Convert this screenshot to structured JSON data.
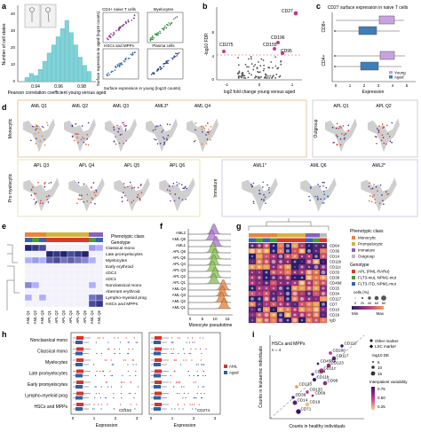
{
  "panels": {
    "a": {
      "letter": "a",
      "ylabel": "Number of cell states",
      "xlabel": "Pearson correlation coefficient\nyoung versus aged",
      "xticks": [
        "0.94",
        "0.96",
        "0.98"
      ],
      "yticks": [
        "0",
        "10",
        "20",
        "30",
        "40"
      ],
      "scatter_titles": [
        "CD4+ naive T cells",
        "Myelocytes",
        "HSCs and MPPs",
        "Plasma cells"
      ],
      "scatter_ylabel": "Surface expression in aged (log10 counts)",
      "scatter_xlabel": "Surface expression in young (log10 counts)",
      "scatter_colors": [
        "#8e2b8e",
        "#2e8b3e",
        "#3a6fb0",
        "#2a3f8f"
      ]
    },
    "b": {
      "letter": "b",
      "ylabel": "-log10 FDR",
      "xlabel": "log2 fold change young versus aged",
      "xticks": [
        "-1",
        "0",
        "1"
      ],
      "yticks": [
        "0",
        "4",
        "8"
      ],
      "labels": [
        "CD27",
        "CD275",
        "CD196",
        "CD155",
        "CD95"
      ]
    },
    "c": {
      "letter": "c",
      "title": "CD27 surface expression in naive T cells",
      "groups": [
        "CD8+",
        "CD4+"
      ],
      "xlabel": "Expression",
      "xticks": [
        "0",
        "1",
        "2",
        "3",
        "4",
        "5"
      ],
      "legend": [
        {
          "name": "Young",
          "color": "#c9a3e0"
        },
        {
          "name": "Aged",
          "color": "#3d7fb8"
        }
      ]
    },
    "d": {
      "letter": "d",
      "row_labels": [
        "Monocytic",
        "Pro myelocytic"
      ],
      "row1_panels": [
        "AML Q1",
        "AML Q2",
        "AML Q3",
        "AML3*",
        "AML Q4",
        "APL Q1",
        "APL Q2"
      ],
      "row2_panels": [
        "APL Q3",
        "APL Q4",
        "APL Q5",
        "APL Q6",
        "AML1*",
        "AML Q6",
        "AML2*"
      ],
      "side_labels": [
        "Outgroup",
        "Immature"
      ]
    },
    "e": {
      "letter": "e",
      "legend_items": [
        "Phenotypic class",
        "Genotype"
      ],
      "rows": [
        "Classical mono",
        "Late promyelocytes",
        "Myelocytes",
        "Early erythroid",
        "cDC2",
        "cDC1",
        "Nonclassical mono",
        "Aberrant erythroid",
        "Lympho-myeloid prog",
        "HSCs and MPPs"
      ],
      "cols": [
        "AML Q1",
        "AML Q2",
        "AML Q3",
        "APL Q1",
        "APL Q2",
        "APL Q3",
        "APL Q4",
        "APL Q5",
        "APL Q6",
        "AML Q4",
        "AML Q6"
      ]
    },
    "f": {
      "letter": "f",
      "xlabel": "Monocyte pseudotime",
      "xticks": [
        "0",
        "5",
        "10",
        "15"
      ],
      "samples": [
        "AML2",
        "AML Q6",
        "AML1",
        "APL Q6",
        "APL Q5",
        "APL Q4",
        "APL Q3",
        "APL Q2",
        "APL Q1",
        "AML Q4",
        "AML Q3",
        "AML Q2",
        "AML Q1"
      ]
    },
    "g": {
      "letter": "g",
      "legend_title_class": "Phenotypic class",
      "classes": [
        {
          "name": "Monocytic",
          "color": "#e8853a"
        },
        {
          "name": "Promyelocytic",
          "color": "#d4b43a"
        },
        {
          "name": "Immature",
          "color": "#8a5fbf"
        },
        {
          "name": "Outgroup",
          "color": "#bbbbbb"
        }
      ],
      "legend_title_genotype": "Genotype",
      "genotypes": [
        {
          "name": "APL (PML-RARα)",
          "color": "#d93a2b"
        },
        {
          "name": "FLT3-mut, NPM1-mut",
          "color": "#4a9a3f"
        },
        {
          "name": "FLT3-ITD, NPM1-mut",
          "color": "#3a62b0"
        }
      ],
      "cells_label": "cells (%)",
      "cells_ticks": [
        "0",
        "20",
        "40",
        "60",
        "80"
      ],
      "scale_min": "Min",
      "scale_max": "Max",
      "markers": [
        "CD64",
        "CD36",
        "CD14",
        "CD11b",
        "CD11c",
        "CD33",
        "CD38",
        "CD49d",
        "CD15",
        "CD34",
        "CD117",
        "CD7",
        "CD10",
        "CD19",
        "IgD"
      ]
    },
    "h": {
      "letter": "h",
      "groups": [
        "Nonclassical mono",
        "Classical mono",
        "Myelocytes",
        "Late promyelocytes",
        "Early promyelocytes",
        "Lympho-myeloid prog",
        "HSCs and MPPs"
      ],
      "xlabel": "Expression",
      "left_marker": "CD152",
      "right_marker": "CD274",
      "left_xticks": [
        "0",
        "1",
        "2",
        "3"
      ],
      "right_xticks": [
        "0",
        "1",
        "2",
        "3"
      ],
      "legend": [
        {
          "name": "AML",
          "color": "#d9342b"
        },
        {
          "name": "Aged",
          "color": "#2e5fa8"
        }
      ]
    },
    "i": {
      "letter": "i",
      "title": "HSCs and MPPs",
      "n_label": "n = 4",
      "ylabel": "Counts in leukaemic individuals",
      "xlabel": "Counts in healthy individuals",
      "legend_markers": [
        "Other marker",
        "LSC marker"
      ],
      "size_title": "-log10 DE",
      "size_ticks": [
        "5",
        "10",
        "15"
      ],
      "var_title": "Interpatient variability",
      "var_ticks": [
        "0.75",
        "0.50",
        "0.25"
      ],
      "points": [
        "CD110",
        "CD200",
        "CD117",
        "CD45RA",
        "CD123",
        "CD11c",
        "CD34",
        "CD11b",
        "CD96",
        "CD133",
        "CD133",
        "CD39",
        "CD14",
        "CD19",
        "CD69",
        "CD71"
      ]
    }
  }
}
